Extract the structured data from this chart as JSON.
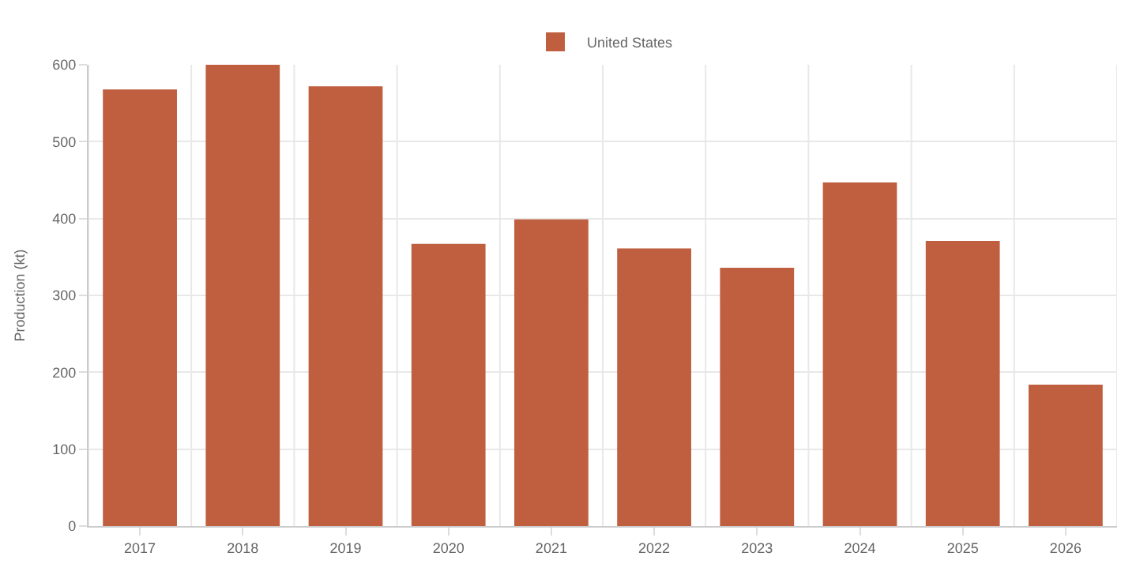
{
  "chart_data": {
    "type": "bar",
    "ylabel": "Production (kt)",
    "categories": [
      "2017",
      "2018",
      "2019",
      "2020",
      "2021",
      "2022",
      "2023",
      "2024",
      "2025",
      "2026"
    ],
    "series": [
      {
        "name": "United States",
        "color": "#bf5f3f",
        "values": [
          568,
          600,
          572,
          367,
          399,
          361,
          336,
          447,
          371,
          184
        ]
      }
    ],
    "ylim": [
      0,
      600
    ],
    "yticks": [
      0,
      100,
      200,
      300,
      400,
      500,
      600
    ],
    "grid": true,
    "legend": "top"
  }
}
